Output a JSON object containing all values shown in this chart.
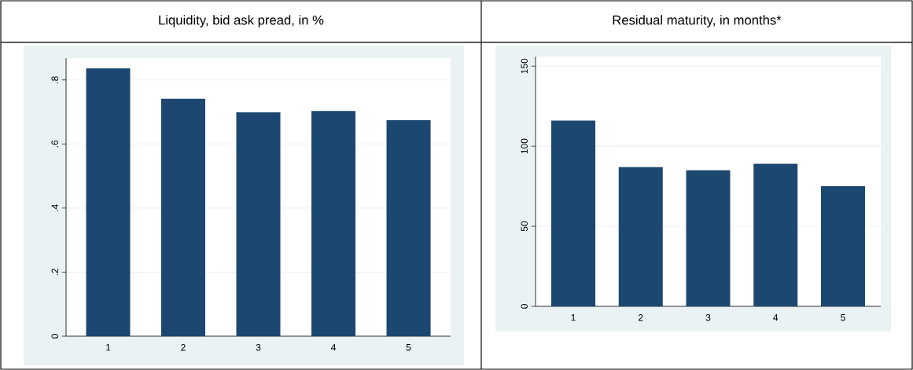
{
  "chart_data": [
    {
      "type": "bar",
      "title": "Liquidity, bid ask pread, in %",
      "categories": [
        "1",
        "2",
        "3",
        "4",
        "5"
      ],
      "values": [
        0.836,
        0.741,
        0.699,
        0.703,
        0.674
      ],
      "color": "#1c4770",
      "ylim": [
        0,
        0.868
      ],
      "yticks": [
        0,
        {
          "value": 0.2,
          "label": ".2"
        },
        {
          "value": 0.4,
          "label": ".4"
        },
        {
          "value": 0.6,
          "label": ".6"
        },
        {
          "value": 0.8,
          "label": ".8"
        }
      ],
      "grid": "y"
    },
    {
      "type": "bar",
      "title": "Residual maturity, in months*",
      "categories": [
        "1",
        "2",
        "3",
        "4",
        "5"
      ],
      "values": [
        116,
        87,
        85,
        89,
        75
      ],
      "color": "#1c4770",
      "ylim": [
        0,
        156
      ],
      "yticks": [
        0,
        50,
        100,
        150
      ],
      "grid": "y"
    }
  ]
}
